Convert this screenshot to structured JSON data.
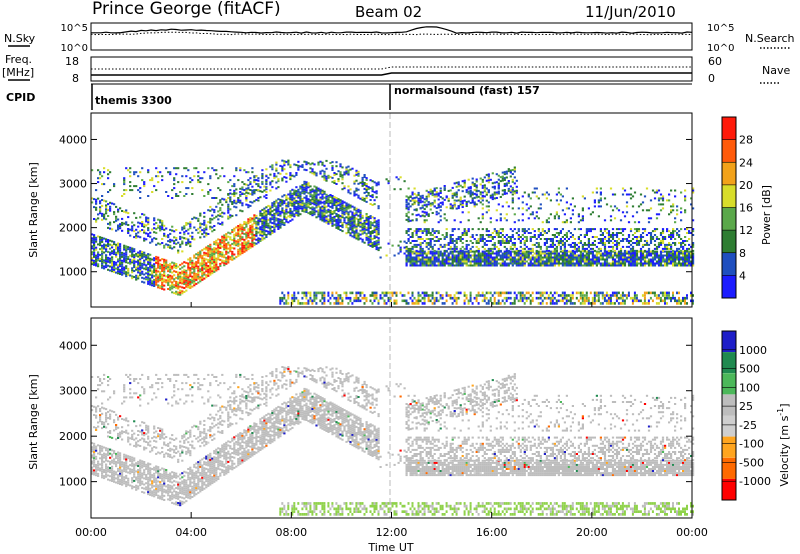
{
  "header": {
    "station": "Prince George (fitACF)",
    "beam": "Beam 02",
    "date": "11/Jun/2010"
  },
  "colors": {
    "power": [
      "#1c1cff",
      "#1f4fbf",
      "#2e7d32",
      "#5aa84a",
      "#d8dd2a",
      "#f2a21a",
      "#ff5a0a",
      "#ff1a0a"
    ],
    "velocity": [
      "#ff0000",
      "#ff6a00",
      "#ffa51f",
      "#cfcfcf",
      "#bdbdbd",
      "#4cb85a",
      "#1f8a50",
      "#1e1ec8"
    ],
    "ground_scatter": "#bdbdbd"
  },
  "top_panels": {
    "nsky_label": "N.Sky",
    "nsearch_label": "N.Search",
    "left_ticks_top": [
      "10^5",
      "10^0"
    ],
    "right_ticks_top": [
      "10^5",
      "10^0"
    ],
    "freq_label_1": "Freq.",
    "freq_label_2": "[MHz]",
    "freq_ticks": [
      "18",
      "8"
    ],
    "nave_label": "Nave",
    "nave_ticks": [
      "60",
      "0"
    ],
    "cpid_label": "CPID",
    "program_1": "themis 3300",
    "program_2": "normalsound (fast) 157"
  },
  "chart_data": [
    {
      "type": "heatmap",
      "name": "power_panel",
      "ylabel": "Slant Range [km]",
      "yticks": [
        "1000",
        "2000",
        "3000",
        "4000"
      ],
      "ylim": [
        200,
        4600
      ],
      "xlim": [
        0,
        24
      ],
      "colorbar": {
        "label": "Power [dB]",
        "ticks": [
          "28",
          "24",
          "20",
          "16",
          "12",
          "8",
          "4"
        ]
      },
      "scatter_regions": [
        {
          "t0": 0.0,
          "t1": 8.6,
          "r0": 1000,
          "r1": 2400,
          "level": "high"
        },
        {
          "t0": 2.0,
          "t1": 8.0,
          "r0": 1200,
          "r1": 2800,
          "level": "high"
        },
        {
          "t0": 8.0,
          "t1": 11.5,
          "r0": 1200,
          "r1": 3400,
          "level": "low"
        },
        {
          "t0": 12.5,
          "t1": 24.0,
          "r0": 800,
          "r1": 2400,
          "level": "low"
        },
        {
          "t0": 14.0,
          "t1": 17.0,
          "r0": 1800,
          "r1": 3400,
          "level": "low"
        }
      ]
    },
    {
      "type": "heatmap",
      "name": "velocity_panel",
      "ylabel": "Slant Range [km]",
      "yticks": [
        "1000",
        "2000",
        "3000",
        "4000"
      ],
      "ylim": [
        200,
        4600
      ],
      "xlim": [
        0,
        24
      ],
      "xlabel": "Time UT",
      "xticks": [
        "00:00",
        "04:00",
        "08:00",
        "12:00",
        "16:00",
        "20:00",
        "00:00"
      ],
      "colorbar": {
        "label": "Velocity [m s",
        "label_sup": "-1",
        "label_end": "]",
        "ticks": [
          "1000",
          "500",
          "100",
          "25",
          "-25",
          "-100",
          "-500",
          "-1000"
        ]
      }
    }
  ]
}
